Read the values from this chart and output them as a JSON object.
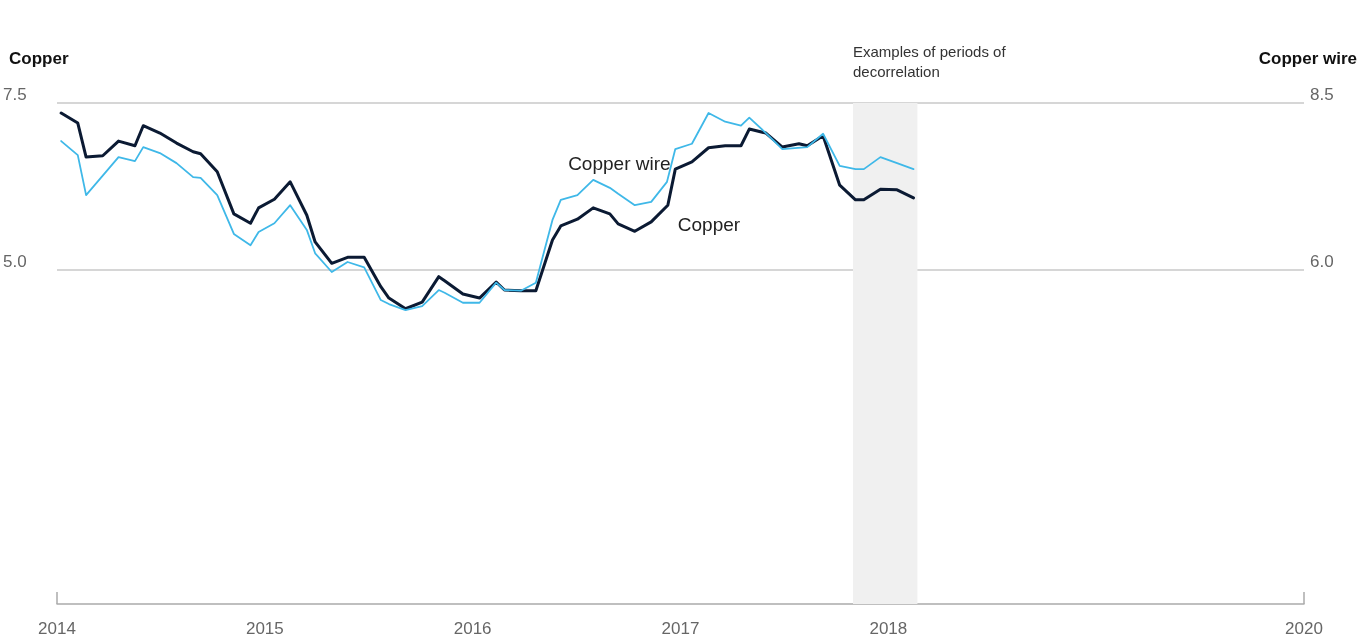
{
  "chart_data": {
    "type": "line",
    "xlabel": null,
    "ylabel": "Copper",
    "y2label": "Copper wire",
    "xlim": [
      2014,
      2020
    ],
    "xticks": [
      2014,
      2015,
      2016,
      2017,
      2018,
      2020
    ],
    "ylim": [
      0,
      7.5
    ],
    "yticks": [
      7.5,
      {
        "value": 5,
        "label": "5.0"
      }
    ],
    "y2lim": [
      1,
      8.5
    ],
    "y2ticks": [
      8.5,
      {
        "value": 6,
        "label": "6.0"
      }
    ],
    "grid": "y",
    "legend": false,
    "marker": "none",
    "line_style": "solid",
    "bands": [
      {
        "axis": "x",
        "from": 2017.83,
        "to": 2018.14,
        "label": "Examples of periods of decorrelation",
        "color": "#f0f0f0"
      }
    ],
    "series": [
      {
        "name": "Copper",
        "color": "#0b1a33",
        "x": [
          2014.02,
          2014.1,
          2014.14,
          2014.22,
          2014.296,
          2014.375,
          2014.415,
          2014.495,
          2014.575,
          2014.655,
          2014.691,
          2014.771,
          2014.851,
          2014.931,
          2014.97,
          2015.046,
          2015.122,
          2015.202,
          2015.242,
          2015.322,
          2015.398,
          2015.478,
          2015.558,
          2015.597,
          2015.677,
          2015.757,
          2015.837,
          2015.865,
          2015.953,
          2016.033,
          2016.113,
          2016.153,
          2016.232,
          2016.304,
          2016.384,
          2016.424,
          2016.504,
          2016.58,
          2016.66,
          2016.7,
          2016.78,
          2016.859,
          2016.939,
          2016.975,
          2017.055,
          2017.135,
          2017.215,
          2017.291,
          2017.331,
          2017.411,
          2017.49,
          2017.57,
          2017.61,
          2017.686,
          2017.766,
          2017.842,
          2017.882,
          2017.962,
          2018.042,
          2018.121
        ],
        "values": [
          7.35,
          7.2,
          6.69,
          6.71,
          6.93,
          6.86,
          7.16,
          7.05,
          6.9,
          6.77,
          6.74,
          6.47,
          5.84,
          5.7,
          5.93,
          6.06,
          6.32,
          5.82,
          5.42,
          5.1,
          5.19,
          5.19,
          4.75,
          4.58,
          4.42,
          4.52,
          4.9,
          4.84,
          4.64,
          4.58,
          4.82,
          4.7,
          4.69,
          4.69,
          5.45,
          5.66,
          5.76,
          5.93,
          5.84,
          5.69,
          5.58,
          5.72,
          5.97,
          6.51,
          6.62,
          6.83,
          6.86,
          6.86,
          7.11,
          7.05,
          6.84,
          6.89,
          6.86,
          7.01,
          6.27,
          6.05,
          6.05,
          6.21,
          6.2,
          6.08
        ]
      },
      {
        "name": "Copper wire",
        "color": "#3fb8e8",
        "axis": "y2",
        "x": [
          2014.02,
          2014.1,
          2014.14,
          2014.296,
          2014.375,
          2014.415,
          2014.495,
          2014.575,
          2014.655,
          2014.691,
          2014.771,
          2014.851,
          2014.931,
          2014.97,
          2015.046,
          2015.122,
          2015.202,
          2015.242,
          2015.322,
          2015.398,
          2015.478,
          2015.558,
          2015.597,
          2015.677,
          2015.757,
          2015.837,
          2015.865,
          2015.953,
          2016.033,
          2016.113,
          2016.153,
          2016.232,
          2016.304,
          2016.384,
          2016.424,
          2016.504,
          2016.58,
          2016.66,
          2016.7,
          2016.78,
          2016.859,
          2016.935,
          2016.975,
          2017.055,
          2017.135,
          2017.215,
          2017.291,
          2017.331,
          2017.411,
          2017.49,
          2017.61,
          2017.686,
          2017.766,
          2017.842,
          2017.882,
          2017.962,
          2018.042,
          2018.121
        ],
        "values": [
          7.93,
          7.72,
          7.12,
          7.69,
          7.63,
          7.84,
          7.75,
          7.6,
          7.39,
          7.38,
          7.12,
          6.54,
          6.37,
          6.57,
          6.7,
          6.97,
          6.6,
          6.25,
          5.97,
          6.12,
          6.04,
          5.55,
          5.49,
          5.4,
          5.46,
          5.7,
          5.66,
          5.51,
          5.51,
          5.81,
          5.7,
          5.69,
          5.81,
          6.75,
          7.05,
          7.12,
          7.35,
          7.23,
          7.14,
          6.97,
          7.02,
          7.32,
          7.81,
          7.89,
          8.35,
          8.22,
          8.16,
          8.28,
          8.05,
          7.81,
          7.84,
          8.04,
          7.56,
          7.51,
          7.51,
          7.69,
          7.6,
          7.51
        ]
      }
    ]
  }
}
